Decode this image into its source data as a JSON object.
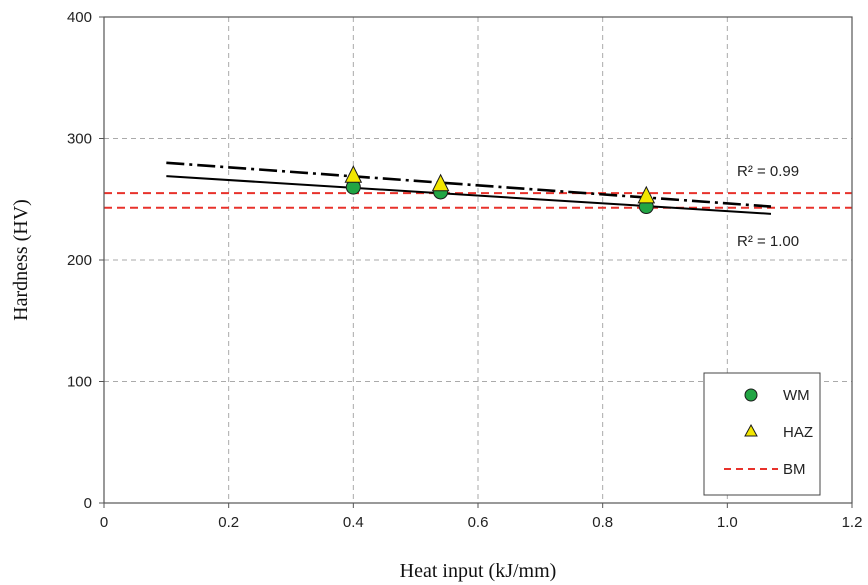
{
  "chart_data": {
    "type": "scatter",
    "xlabel": "Heat input (kJ/mm)",
    "ylabel": "Hardness (HV)",
    "xlim": [
      0,
      1.2
    ],
    "ylim": [
      0,
      400
    ],
    "x_ticks": [
      "0",
      "0.2",
      "0.4",
      "0.6",
      "0.8",
      "1.0",
      "1.2"
    ],
    "y_ticks": [
      "0",
      "100",
      "200",
      "300",
      "400"
    ],
    "grid": true,
    "legend_position": "bottom-right",
    "series": [
      {
        "name": "WM",
        "marker": "circle",
        "color": "#22a544",
        "x": [
          0.4,
          0.54,
          0.87
        ],
        "y": [
          260,
          256,
          244
        ]
      },
      {
        "name": "HAZ",
        "marker": "triangle",
        "color": "#f2e600",
        "x": [
          0.4,
          0.54,
          0.87
        ],
        "y": [
          269,
          262,
          252
        ]
      },
      {
        "name": "BM",
        "style": "dashed",
        "color": "#e8322b",
        "y": [
          243,
          255
        ]
      }
    ],
    "trendlines": [
      {
        "series": "WM",
        "style": "solid",
        "color": "#000000",
        "x": [
          0.1,
          1.07
        ],
        "y": [
          269,
          238
        ]
      },
      {
        "series": "HAZ",
        "style": "dash-dot",
        "color": "#000000",
        "x": [
          0.1,
          1.07
        ],
        "y": [
          280,
          244
        ]
      }
    ],
    "annotations": [
      "R² = 0.99",
      "R² = 1.00"
    ]
  }
}
